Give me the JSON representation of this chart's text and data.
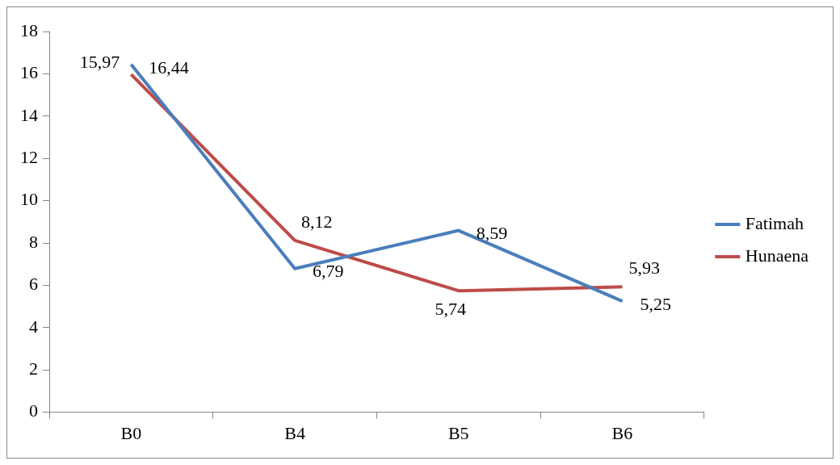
{
  "chart_data": {
    "type": "line",
    "categories": [
      "B0",
      "B4",
      "B5",
      "B6"
    ],
    "series": [
      {
        "name": "Fatimah",
        "color": "#4a7ebb",
        "values": [
          16.44,
          6.79,
          8.59,
          5.25
        ],
        "value_labels": [
          "16,44",
          "6,79",
          "8,59",
          "5,25"
        ]
      },
      {
        "name": "Hunaena",
        "color": "#be4b48",
        "values": [
          15.97,
          8.12,
          5.74,
          5.93
        ],
        "value_labels": [
          "15,97",
          "8,12",
          "5,74",
          "5,93"
        ]
      }
    ],
    "ylim": [
      0,
      18
    ],
    "yticks": [
      0,
      2,
      4,
      6,
      8,
      10,
      12,
      14,
      16,
      18
    ],
    "grid": false,
    "legend": "right",
    "marker": "none",
    "line_style": "solid"
  }
}
